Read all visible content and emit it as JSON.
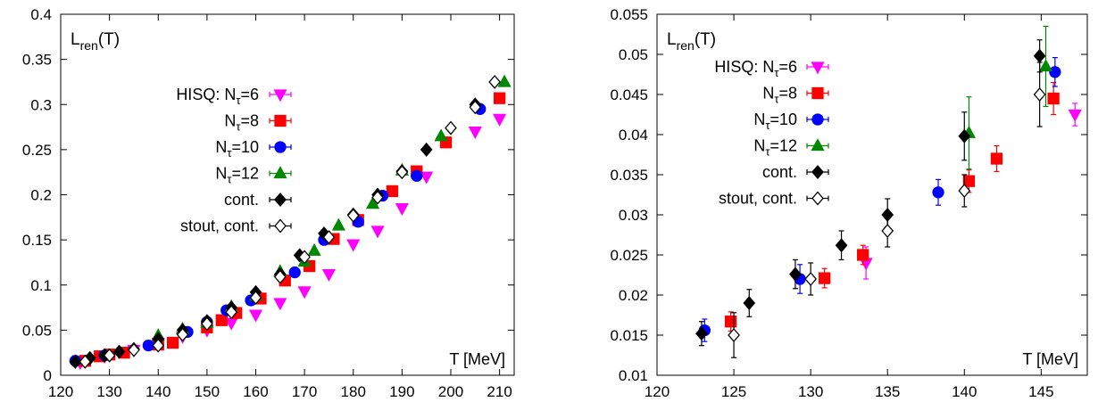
{
  "chart_data": [
    {
      "type": "scatter",
      "title": "",
      "ylabel_main": "L",
      "ylabel_sub": "ren",
      "ylabel_tail": "(T)",
      "xlabel": "T [MeV]",
      "xlim": [
        120,
        213
      ],
      "ylim": [
        0,
        0.4
      ],
      "xticks": [
        120,
        130,
        140,
        150,
        160,
        170,
        180,
        190,
        200,
        210
      ],
      "yticks": [
        0,
        0.05,
        0.1,
        0.15,
        0.2,
        0.25,
        0.3,
        0.35,
        0.4
      ],
      "ytick_labels": [
        "0",
        "0.05",
        "0.1",
        "0.15",
        "0.2",
        "0.25",
        "0.3",
        "0.35",
        "0.4"
      ],
      "grid": false,
      "legend_position": "middle-left",
      "series": [
        {
          "name": "HISQ: Nτ=6",
          "label_parts": [
            "HISQ: N",
            "τ",
            "=6"
          ],
          "marker": "triangle-down",
          "filled": true,
          "color": "#ff00ff",
          "x": [
            124,
            129,
            135,
            140,
            145,
            150,
            155,
            160,
            165,
            170,
            175,
            180,
            185,
            190,
            195,
            205,
            210
          ],
          "y": [
            0.014,
            0.021,
            0.028,
            0.036,
            0.043,
            0.05,
            0.058,
            0.067,
            0.08,
            0.093,
            0.112,
            0.145,
            0.16,
            0.185,
            0.22,
            0.27,
            0.284
          ]
        },
        {
          "name": "Nτ=8",
          "label_parts": [
            "N",
            "τ",
            "=8"
          ],
          "marker": "square",
          "filled": true,
          "color": "#ff0000",
          "x": [
            125,
            128,
            130,
            133,
            140,
            143,
            150,
            153,
            156,
            161,
            166,
            171,
            176,
            181,
            188,
            193,
            199,
            210
          ],
          "y": [
            0.016,
            0.021,
            0.023,
            0.025,
            0.034,
            0.036,
            0.053,
            0.061,
            0.069,
            0.085,
            0.105,
            0.121,
            0.151,
            0.172,
            0.204,
            0.226,
            0.258,
            0.307
          ]
        },
        {
          "name": "Nτ=10",
          "label_parts": [
            "N",
            "τ",
            "=10"
          ],
          "marker": "circle",
          "filled": true,
          "color": "#0000ff",
          "x": [
            123,
            129,
            138,
            146,
            150,
            154,
            159,
            168,
            174,
            181,
            186,
            193,
            206
          ],
          "y": [
            0.016,
            0.022,
            0.033,
            0.048,
            0.059,
            0.072,
            0.083,
            0.114,
            0.15,
            0.17,
            0.199,
            0.221,
            0.295
          ]
        },
        {
          "name": "Nτ=12",
          "label_parts": [
            "N",
            "τ",
            "=12"
          ],
          "marker": "triangle-up",
          "filled": true,
          "color": "#008800",
          "x": [
            140,
            145,
            150,
            155,
            160,
            165,
            170,
            172,
            177,
            184,
            190,
            198,
            211
          ],
          "y": [
            0.044,
            0.051,
            0.058,
            0.076,
            0.088,
            0.115,
            0.126,
            0.138,
            0.166,
            0.19,
            0.227,
            0.265,
            0.325
          ]
        },
        {
          "name": "cont.",
          "label_parts": [
            "cont.",
            "",
            ""
          ],
          "marker": "diamond",
          "filled": true,
          "color": "#000000",
          "x": [
            123,
            126,
            129,
            132,
            135,
            140,
            145,
            150,
            155,
            160,
            165,
            169,
            174,
            180,
            185,
            190,
            195,
            205
          ],
          "y": [
            0.015,
            0.019,
            0.022,
            0.026,
            0.029,
            0.04,
            0.05,
            0.06,
            0.075,
            0.092,
            0.112,
            0.133,
            0.157,
            0.178,
            0.2,
            0.226,
            0.25,
            0.3
          ]
        },
        {
          "name": "stout, cont.",
          "label_parts": [
            "stout, cont.",
            "",
            ""
          ],
          "marker": "diamond",
          "filled": false,
          "color": "#000000",
          "x": [
            125,
            130,
            135,
            140,
            145,
            150,
            155,
            160,
            165,
            170,
            175,
            180,
            185,
            190,
            200,
            205,
            209
          ],
          "y": [
            0.015,
            0.022,
            0.028,
            0.033,
            0.045,
            0.057,
            0.07,
            0.086,
            0.109,
            0.131,
            0.153,
            0.177,
            0.197,
            0.225,
            0.274,
            0.297,
            0.325
          ]
        }
      ]
    },
    {
      "type": "scatter",
      "title": "",
      "ylabel_main": "L",
      "ylabel_sub": "ren",
      "ylabel_tail": "(T)",
      "xlabel": "T [MeV]",
      "xlim": [
        120,
        148
      ],
      "ylim": [
        0.01,
        0.055
      ],
      "xticks": [
        120,
        125,
        130,
        135,
        140,
        145
      ],
      "yticks": [
        0.01,
        0.015,
        0.02,
        0.025,
        0.03,
        0.035,
        0.04,
        0.045,
        0.05,
        0.055
      ],
      "ytick_labels": [
        "0.01",
        "0.015",
        "0.02",
        "0.025",
        "0.03",
        "0.035",
        "0.04",
        "0.045",
        "0.05",
        "0.055"
      ],
      "grid": false,
      "legend_position": "top-left",
      "series": [
        {
          "name": "HISQ: Nτ=6",
          "label_parts": [
            "HISQ: N",
            "τ",
            "=6"
          ],
          "marker": "triangle-down",
          "filled": true,
          "color": "#ff00ff",
          "x": [
            133.6,
            147.2
          ],
          "y": [
            0.024,
            0.0425
          ],
          "err": [
            0.002,
            0.0014
          ]
        },
        {
          "name": "Nτ=8",
          "label_parts": [
            "N",
            "τ",
            "=8"
          ],
          "marker": "square",
          "filled": true,
          "color": "#ff0000",
          "x": [
            124.8,
            130.9,
            133.4,
            140.3,
            142.1,
            145.8
          ],
          "y": [
            0.0167,
            0.0221,
            0.025,
            0.0342,
            0.037,
            0.0445
          ],
          "err": [
            0.0012,
            0.0012,
            0.0012,
            0.0014,
            0.0016,
            0.002
          ]
        },
        {
          "name": "Nτ=10",
          "label_parts": [
            "N",
            "τ",
            "=10"
          ],
          "marker": "circle",
          "filled": true,
          "color": "#0000ff",
          "x": [
            123.1,
            129.3,
            138.3,
            145.9
          ],
          "y": [
            0.0156,
            0.022,
            0.0328,
            0.0478
          ],
          "err": [
            0.0014,
            0.0018,
            0.0016,
            0.0018
          ]
        },
        {
          "name": "Nτ=12",
          "label_parts": [
            "N",
            "τ",
            "=12"
          ],
          "marker": "triangle-up",
          "filled": true,
          "color": "#008800",
          "x": [
            140.3,
            145.3
          ],
          "y": [
            0.0402,
            0.0485
          ],
          "err": [
            0.0045,
            0.005
          ]
        },
        {
          "name": "cont.",
          "label_parts": [
            "cont.",
            "",
            ""
          ],
          "marker": "diamond",
          "filled": true,
          "color": "#000000",
          "x": [
            122.9,
            126.0,
            129.0,
            132.0,
            135.0,
            140.0,
            144.9
          ],
          "y": [
            0.0152,
            0.019,
            0.0226,
            0.0262,
            0.03,
            0.0398,
            0.0498
          ],
          "err": [
            0.0015,
            0.0017,
            0.0018,
            0.0018,
            0.002,
            0.003,
            0.002
          ]
        },
        {
          "name": "stout, cont.",
          "label_parts": [
            "stout, cont.",
            "",
            ""
          ],
          "marker": "diamond",
          "filled": false,
          "color": "#000000",
          "x": [
            125.0,
            130.0,
            135.0,
            140.0,
            144.9
          ],
          "y": [
            0.015,
            0.022,
            0.028,
            0.033,
            0.045
          ],
          "err": [
            0.0028,
            0.002,
            0.002,
            0.002,
            0.004
          ]
        }
      ]
    }
  ]
}
